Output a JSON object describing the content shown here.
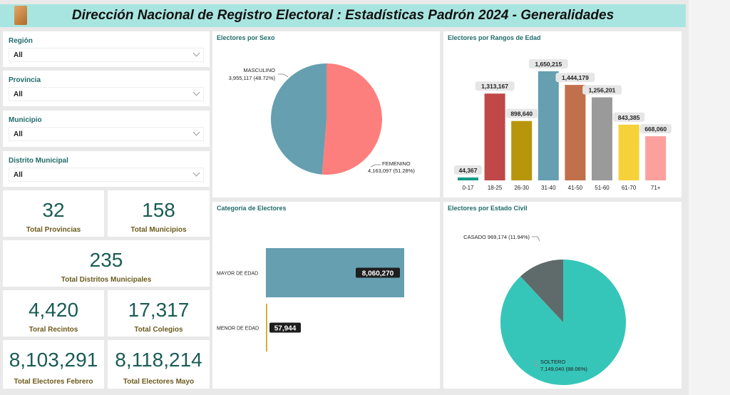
{
  "header": {
    "title": "Dirección Nacional de Registro Electoral : Estadísticas Padrón 2024 - Generalidades",
    "logo_text": "JCE"
  },
  "filters": [
    {
      "label": "Región",
      "value": "All"
    },
    {
      "label": "Provincia",
      "value": "All"
    },
    {
      "label": "Municipio",
      "value": "All"
    },
    {
      "label": "Distrito Municipal",
      "value": "All"
    }
  ],
  "kpis": [
    {
      "value": "32",
      "label": "Total Provincias"
    },
    {
      "value": "158",
      "label": "Total Municipios"
    },
    {
      "value": "235",
      "label": "Total Distritos Municipales"
    },
    {
      "value": "4,420",
      "label": "Toral Recintos"
    },
    {
      "value": "17,317",
      "label": "Total Colegios"
    },
    {
      "value": "8,103,291",
      "label": "Total Electores Febrero"
    },
    {
      "value": "8,118,214",
      "label": "Total Electores Mayo"
    }
  ],
  "chart_data": [
    {
      "type": "pie",
      "title": "Electores por Sexo",
      "slices": [
        {
          "name": "FEMENINO",
          "value": 4163097,
          "label": "4,163,097 (51.28%)",
          "color": "#fd7f7d"
        },
        {
          "name": "MASCULINO",
          "value": 3955117,
          "label": "3,955,117 (48.72%)",
          "color": "#659fb0"
        }
      ]
    },
    {
      "type": "bar",
      "title": "Electores por Rangos de Edad",
      "categories": [
        "0-17",
        "18-25",
        "26-30",
        "31-40",
        "41-50",
        "51-60",
        "61-70",
        "71+"
      ],
      "values": [
        44367,
        1313167,
        898640,
        1650215,
        1444179,
        1256201,
        843385,
        668060
      ],
      "labels": [
        "44,367",
        "1,313,167",
        "898,640",
        "1,650,215",
        "1,444,179",
        "1,256,201",
        "843,385",
        "668,060"
      ],
      "colors": [
        "#119b88",
        "#c04848",
        "#b8960c",
        "#659fb0",
        "#c0704a",
        "#9a9a9a",
        "#f5d23a",
        "#fca09e"
      ]
    },
    {
      "type": "bar",
      "orientation": "horizontal",
      "title": "Categoría de Electores",
      "categories": [
        "MAYOR DE EDAD",
        "MENOR DE EDAD"
      ],
      "values": [
        8060270,
        57944
      ],
      "labels": [
        "8,060,270",
        "57,944"
      ],
      "colors": [
        "#659fb0",
        "#d4ae3a"
      ]
    },
    {
      "type": "pie",
      "title": "Electores por Estado Civil",
      "slices": [
        {
          "name": "SOLTERO",
          "value": 7149040,
          "label": "7,149,040 (88.06%)",
          "color": "#35c6b9"
        },
        {
          "name": "CASADO",
          "value": 969174,
          "label": "969,174 (11.94%)",
          "color": "#5f6b6b"
        }
      ]
    }
  ]
}
